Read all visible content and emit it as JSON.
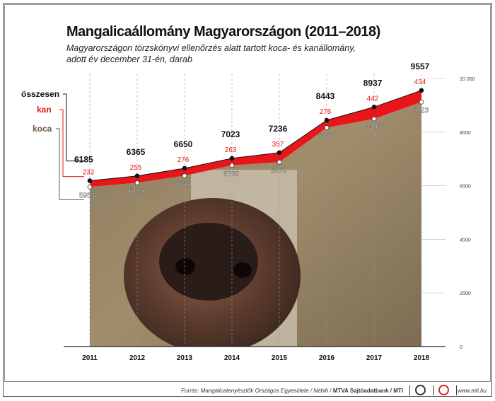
{
  "title": "Mangalicaállomány Magyarországon (2011–2018)",
  "subtitle_line1": "Magyarországon törzskönyvi ellenőrzés alatt tartott koca- és kanállomány,",
  "subtitle_line2": "adott év december 31-én, darab",
  "footer": {
    "source_prefix": "Forrás: Mangalicatenyésztők Országos Egyesülete / Nébih / ",
    "source_bold": "MTVA Sajtóadatbank / MTI",
    "logo1": "MTVA",
    "url": "www.mti.hu"
  },
  "colors": {
    "total": "#111111",
    "kan": "#e8161b",
    "koca": "#6b5a44"
  },
  "chart_data": {
    "type": "line",
    "x": [
      "2011",
      "2012",
      "2013",
      "2014",
      "2015",
      "2016",
      "2017",
      "2018"
    ],
    "series": [
      {
        "name": "összesen",
        "values": [
          6185,
          6365,
          6650,
          7023,
          7236,
          8443,
          8937,
          9557
        ]
      },
      {
        "name": "kan",
        "values": [
          232,
          255,
          276,
          263,
          357,
          276,
          442,
          434
        ]
      },
      {
        "name": "koca",
        "values": [
          5953,
          6110,
          6374,
          6760,
          6879,
          8167,
          8495,
          9123
        ]
      }
    ],
    "ylim": [
      0,
      10000
    ],
    "yticks": [
      0,
      2000,
      4000,
      6000,
      8000,
      10000
    ],
    "ytick_labels": [
      "0",
      "2000",
      "4000",
      "6000",
      "8000",
      "10 000"
    ],
    "legend": [
      "összesen",
      "kan",
      "koca"
    ],
    "legend_placement": "left"
  }
}
